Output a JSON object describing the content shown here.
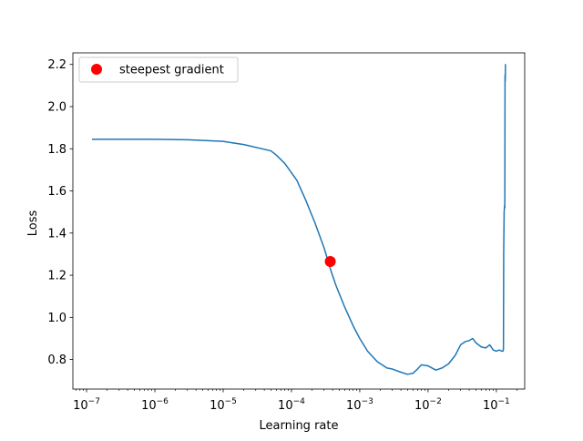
{
  "chart_data": {
    "type": "line",
    "title": "",
    "xlabel": "Learning rate",
    "ylabel": "Loss",
    "xscale": "log",
    "xlim": [
      6.3e-08,
      0.26
    ],
    "ylim": [
      0.66,
      2.255
    ],
    "grid": false,
    "legend_placement": "top-left",
    "x_tick_labels": [
      {
        "value": 1e-07,
        "base": "10",
        "exp": "−7"
      },
      {
        "value": 1e-06,
        "base": "10",
        "exp": "−6"
      },
      {
        "value": 1e-05,
        "base": "10",
        "exp": "−5"
      },
      {
        "value": 0.0001,
        "base": "10",
        "exp": "−4"
      },
      {
        "value": 0.001,
        "base": "10",
        "exp": "−3"
      },
      {
        "value": 0.01,
        "base": "10",
        "exp": "−2"
      },
      {
        "value": 0.1,
        "base": "10",
        "exp": "−1"
      }
    ],
    "y_ticks": [
      0.8,
      1.0,
      1.2,
      1.4,
      1.6,
      1.8,
      2.0,
      2.2
    ],
    "y_tick_labels": [
      "0.8",
      "1.0",
      "1.2",
      "1.4",
      "1.6",
      "1.8",
      "2.0",
      "2.2"
    ],
    "series": [
      {
        "color": "#1f77b4",
        "x": [
          1.2e-07,
          5e-07,
          1e-06,
          3e-06,
          1e-05,
          2e-05,
          5e-05,
          6e-05,
          8e-05,
          0.00012,
          0.00016,
          0.00022,
          0.0003,
          0.00038,
          0.00045,
          0.0006,
          0.0008,
          0.001,
          0.0013,
          0.0018,
          0.0025,
          0.003,
          0.004,
          0.005,
          0.006,
          0.007,
          0.008,
          0.01,
          0.013,
          0.016,
          0.02,
          0.025,
          0.03,
          0.035,
          0.04,
          0.045,
          0.05,
          0.06,
          0.07,
          0.08,
          0.09,
          0.1,
          0.11,
          0.12,
          0.125,
          0.127,
          0.128,
          0.13,
          0.132,
          0.133,
          0.134,
          0.135,
          0.136,
          0.137
        ],
        "y": [
          1.845,
          1.845,
          1.845,
          1.843,
          1.835,
          1.82,
          1.79,
          1.77,
          1.73,
          1.65,
          1.56,
          1.45,
          1.33,
          1.22,
          1.15,
          1.05,
          0.96,
          0.9,
          0.84,
          0.79,
          0.76,
          0.755,
          0.74,
          0.73,
          0.735,
          0.755,
          0.775,
          0.77,
          0.75,
          0.76,
          0.78,
          0.82,
          0.87,
          0.885,
          0.89,
          0.9,
          0.88,
          0.86,
          0.855,
          0.87,
          0.845,
          0.84,
          0.845,
          0.84,
          0.84,
          0.85,
          1.3,
          1.5,
          1.53,
          1.52,
          2.15,
          2.12,
          2.2,
          2.2
        ]
      }
    ],
    "highlight_point": {
      "name": "steepest gradient",
      "x": 0.00037,
      "y": 1.265,
      "color": "#ff0000"
    }
  }
}
